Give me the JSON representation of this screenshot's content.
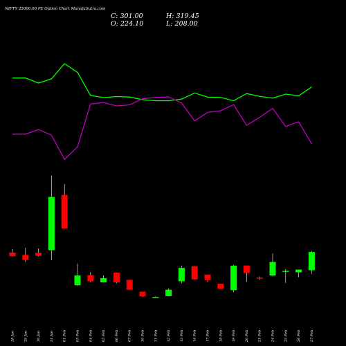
{
  "chart_data": {
    "type": "candlestick",
    "title": "NIFTY 25000.00  PE Option  Chart MunafaSutra.com",
    "ohlc_labels": {
      "close": "C: 301.00",
      "high": "H: 319.45",
      "open": "O: 224.10",
      "low": "L: 208.00"
    },
    "colors": {
      "up": "#00ff00",
      "down": "#ff0000",
      "line_a": "#00ff00",
      "line_b": "#c000c0",
      "wick": "#ffffff",
      "background": "#000000"
    },
    "categories": [
      "28 Jan",
      "29 Jan",
      "30 Jan",
      "31 Jan",
      "01 Feb",
      "03 Feb",
      "04 Feb",
      "05 Feb",
      "06 Feb",
      "07 Feb",
      "10 Feb",
      "11 Feb",
      "12 Feb",
      "13 Feb",
      "14 Feb",
      "17 Feb",
      "18 Feb",
      "19 Feb",
      "20 Feb",
      "21 Feb",
      "24 Feb",
      "25 Feb",
      "26 Feb",
      "27 Feb"
    ],
    "candles": [
      {
        "o": 234.0,
        "h": 247.1,
        "l": 220.0,
        "c": 221.0
      },
      {
        "o": 225.6,
        "h": 250.8,
        "l": 200.0,
        "c": 207.5
      },
      {
        "o": 233.5,
        "h": 248.5,
        "l": 220.0,
        "c": 222.3
      },
      {
        "o": 242.8,
        "h": 511.0,
        "l": 206.4,
        "c": 434.0
      },
      {
        "o": 441.0,
        "h": 480.2,
        "l": 320.0,
        "c": 320.4
      },
      {
        "o": 116.7,
        "h": 194.6,
        "l": 114.6,
        "c": 151.7
      },
      {
        "o": 153.2,
        "h": 164.0,
        "l": 126.5,
        "c": 131.0
      },
      {
        "o": 127.1,
        "h": 152.4,
        "l": 126.3,
        "c": 142.0
      },
      {
        "o": 162.0,
        "h": 162.5,
        "l": 123.6,
        "c": 127.1
      },
      {
        "o": 136.0,
        "h": 136.5,
        "l": 100.2,
        "c": 100.6
      },
      {
        "o": 93.6,
        "h": 93.6,
        "l": 75.0,
        "c": 76.5
      },
      {
        "o": 73.6,
        "h": 77.0,
        "l": 73.0,
        "c": 75.0
      },
      {
        "o": 77.6,
        "h": 105.4,
        "l": 76.0,
        "c": 100.6
      },
      {
        "o": 131.0,
        "h": 187.5,
        "l": 123.6,
        "c": 179.0
      },
      {
        "o": 185.3,
        "h": 186.0,
        "l": 137.5,
        "c": 137.9
      },
      {
        "o": 154.9,
        "h": 155.0,
        "l": 128.0,
        "c": 135.0
      },
      {
        "o": 122.0,
        "h": 122.0,
        "l": 102.9,
        "c": 104.3
      },
      {
        "o": 99.0,
        "h": 190.0,
        "l": 91.6,
        "c": 187.0
      },
      {
        "o": 187.5,
        "h": 188.0,
        "l": 129.0,
        "c": 160.6
      },
      {
        "o": 144.3,
        "h": 148.1,
        "l": 136.0,
        "c": 140.7
      },
      {
        "o": 151.7,
        "h": 230.8,
        "l": 148.6,
        "c": 200.4
      },
      {
        "o": 165.0,
        "h": 174.0,
        "l": 125.0,
        "c": 168.5
      },
      {
        "o": 163.2,
        "h": 173.0,
        "l": 145.4,
        "c": 173.0
      },
      {
        "o": 170.8,
        "h": 240.0,
        "l": 158.0,
        "c": 236.1
      }
    ],
    "series": [
      {
        "values": [
          79.5,
          79.6,
          75.0,
          78.8,
          92.5,
          84.6,
          63.8,
          61.9,
          62.8,
          62.4,
          60.0,
          59.0,
          59.0,
          60.5,
          66.0,
          62.3,
          62.0,
          59.0,
          65.5,
          63.0,
          61.4,
          65.0,
          63.5,
          71.5
        ]
      },
      {
        "values": [
          28.9,
          28.9,
          33.0,
          28.0,
          6.0,
          17.3,
          56.0,
          57.5,
          54.4,
          55.3,
          60.8,
          62.1,
          62.4,
          57.0,
          40.8,
          48.5,
          50.0,
          55.5,
          36.8,
          44.0,
          52.1,
          35.8,
          40.0,
          20.1
        ]
      }
    ],
    "indicator_ylim": [
      0,
      100
    ],
    "price_ylim": [
      60,
      520
    ]
  }
}
